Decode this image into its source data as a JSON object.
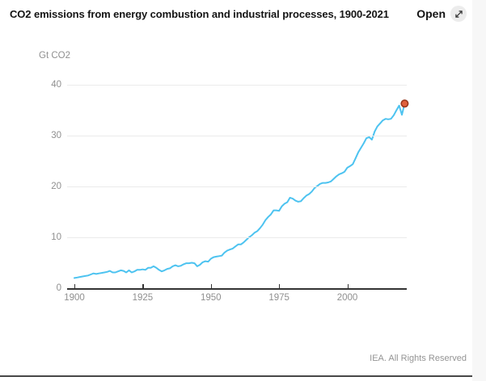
{
  "header": {
    "title": "CO2 emissions from energy combustion and industrial processes, 1900-2021",
    "open_label": "Open"
  },
  "footer": {
    "credit": "IEA. All Rights Reserved"
  },
  "chart_data": {
    "type": "line",
    "title": "CO2 emissions from energy combustion and industrial processes, 1900-2021",
    "ylabel": "Gt CO2",
    "xlabel": "",
    "unit_label": "Gt CO2",
    "xlim": [
      1900,
      2021
    ],
    "ylim": [
      0,
      40
    ],
    "y_ticks": [
      0,
      10,
      20,
      30,
      40
    ],
    "x_ticks": [
      1900,
      1925,
      1950,
      1975,
      2000
    ],
    "grid": "horizontal",
    "legend": "none",
    "line_color": "#4dc3f0",
    "grid_color": "#ebebeb",
    "endpoint_fill": "#e0603c",
    "endpoint_stroke": "#99371c",
    "series": [
      {
        "name": "CO2 emissions",
        "x_start": 1900,
        "values": [
          2.0,
          2.1,
          2.2,
          2.3,
          2.4,
          2.5,
          2.7,
          2.9,
          2.8,
          2.9,
          3.0,
          3.1,
          3.2,
          3.4,
          3.1,
          3.1,
          3.3,
          3.5,
          3.4,
          3.1,
          3.5,
          3.1,
          3.3,
          3.6,
          3.6,
          3.7,
          3.6,
          4.0,
          4.0,
          4.3,
          4.0,
          3.6,
          3.3,
          3.5,
          3.8,
          3.9,
          4.3,
          4.5,
          4.3,
          4.4,
          4.7,
          4.9,
          4.9,
          5.0,
          4.9,
          4.3,
          4.6,
          5.1,
          5.3,
          5.2,
          5.8,
          6.1,
          6.2,
          6.3,
          6.4,
          7.0,
          7.4,
          7.6,
          7.8,
          8.2,
          8.6,
          8.6,
          9.0,
          9.5,
          10.0,
          10.4,
          10.9,
          11.2,
          11.8,
          12.5,
          13.4,
          14.0,
          14.5,
          15.3,
          15.3,
          15.2,
          16.1,
          16.6,
          16.9,
          17.8,
          17.6,
          17.2,
          17.0,
          17.1,
          17.7,
          18.2,
          18.5,
          19.0,
          19.7,
          20.1,
          20.5,
          20.7,
          20.7,
          20.8,
          21.0,
          21.5,
          22.0,
          22.4,
          22.6,
          22.9,
          23.7,
          24.0,
          24.4,
          25.5,
          26.7,
          27.6,
          28.5,
          29.5,
          29.7,
          29.2,
          30.8,
          31.8,
          32.4,
          33.0,
          33.3,
          33.2,
          33.3,
          34.0,
          35.0,
          35.9,
          34.1,
          36.3
        ]
      }
    ],
    "endpoint": {
      "year": 2021,
      "value": 36.3
    }
  }
}
